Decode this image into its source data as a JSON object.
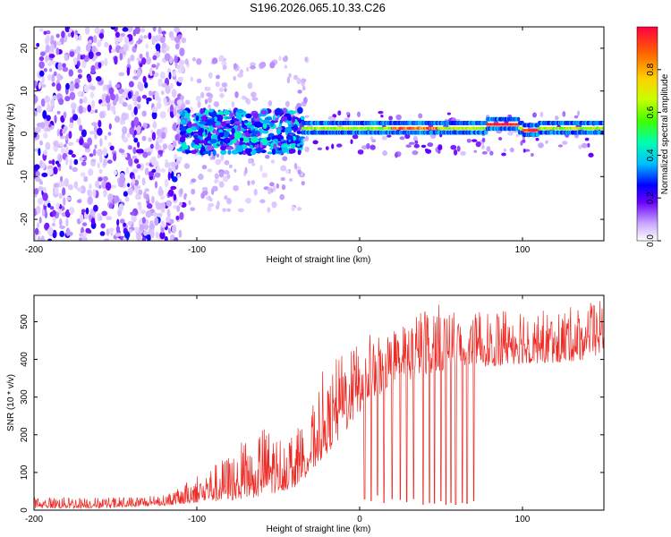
{
  "title": "S196.2026.065.10.33.C26",
  "chart_data": [
    {
      "type": "heatmap",
      "xlabel": "Height of straight line (km)",
      "ylabel": "Frequency (Hz)",
      "xlim": [
        -200,
        150
      ],
      "ylim": [
        -25,
        25
      ],
      "xticks": [
        -200,
        -100,
        0,
        100
      ],
      "yticks": [
        -20,
        -10,
        0,
        10,
        20
      ],
      "colorbar": {
        "label": "Normalized spectral amplitude",
        "range": [
          0,
          1
        ],
        "ticks": [
          "0.0",
          "0.2",
          "0.4",
          "0.6",
          "0.8"
        ],
        "colors": [
          "#ffffff",
          "#c9a8ff",
          "#6a00ff",
          "#0000ff",
          "#00bfff",
          "#00ffb0",
          "#40ff00",
          "#c8ff00",
          "#ffd000",
          "#ff6000",
          "#ff0040"
        ]
      },
      "regions": [
        {
          "x": [
            -200,
            -110
          ],
          "freq_band": [
            -25,
            25
          ],
          "amplitude": "0.05-0.30 scattered noise"
        },
        {
          "x": [
            -110,
            -35
          ],
          "freq_band": [
            -5,
            6
          ],
          "amplitude": "0.1-0.5 clustered"
        },
        {
          "x": [
            -35,
            150
          ],
          "center_freq_hz": 1.5,
          "amplitude": "0.5-1.0 narrow band"
        },
        {
          "x": [
            78,
            98
          ],
          "center_freq_hz": 2.0,
          "amplitude": "0.9-1.0 peak"
        }
      ]
    },
    {
      "type": "line",
      "xlabel": "Height of straight line (km)",
      "ylabel": "SNR (10 * v/v)",
      "xlim": [
        -200,
        150
      ],
      "ylim": [
        0,
        570
      ],
      "xticks": [
        -200,
        -100,
        0,
        100
      ],
      "yticks": [
        0,
        100,
        200,
        300,
        400,
        500
      ],
      "color": "#ee2a24",
      "series": [
        {
          "name": "envelope_max",
          "x": [
            -200,
            -150,
            -120,
            -110,
            -100,
            -90,
            -80,
            -70,
            -60,
            -50,
            -40,
            -30,
            -25,
            -22,
            -20,
            -15,
            -10,
            -5,
            0,
            10,
            20,
            30,
            40,
            50,
            60,
            70,
            80,
            90,
            100,
            110,
            120,
            130,
            140,
            150
          ],
          "values": [
            35,
            35,
            40,
            60,
            100,
            120,
            150,
            190,
            230,
            200,
            210,
            260,
            340,
            380,
            320,
            400,
            420,
            460,
            430,
            490,
            480,
            510,
            540,
            550,
            520,
            520,
            540,
            550,
            560,
            540,
            530,
            540,
            550,
            560
          ]
        },
        {
          "name": "envelope_min",
          "x": [
            -200,
            -150,
            -110,
            -100,
            -80,
            -60,
            -40,
            -30,
            -20,
            -10,
            0,
            10,
            20,
            40,
            60,
            70,
            80,
            100,
            120,
            140,
            150
          ],
          "values": [
            5,
            5,
            15,
            20,
            25,
            35,
            60,
            100,
            150,
            200,
            260,
            300,
            330,
            360,
            380,
            390,
            380,
            390,
            390,
            400,
            420
          ]
        },
        {
          "name": "dropouts",
          "x": [
            3,
            7,
            11,
            15,
            20,
            25,
            29,
            33,
            39,
            43,
            46,
            50,
            53,
            56,
            59,
            63,
            66,
            70
          ],
          "values": [
            30,
            25,
            40,
            20,
            30,
            28,
            22,
            30,
            15,
            20,
            18,
            25,
            15,
            20,
            15,
            20,
            18,
            25
          ]
        }
      ]
    }
  ]
}
